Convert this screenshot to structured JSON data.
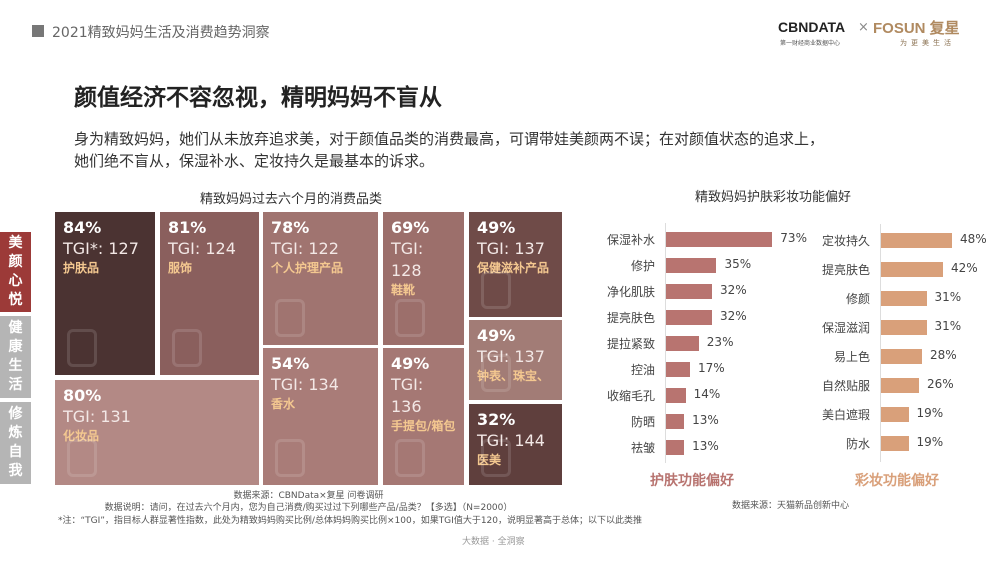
{
  "header": {
    "title": "2021精致妈妈生活及消费趋势洞察"
  },
  "logo": {
    "cbn": "CBNDATA",
    "cbn_sub": "第一财经商业数据中心",
    "x": "×",
    "fosun": "FOSUN 复星",
    "fosun_sub": "为更美生活"
  },
  "headline": "颜值经济不容忽视，精明妈妈不盲从",
  "subtitle": [
    "身为精致妈妈，她们从未放弃追求美，对于颜值品类的消费最高，可谓带娃美颜两不误；在对颜值状态的追求上，",
    "她们绝不盲从，保湿补水、定妆持久是最基本的诉求。"
  ],
  "side_tabs": [
    {
      "label": "美颜心悦",
      "active": true
    },
    {
      "label": "健康生活",
      "active": false
    },
    {
      "label": "修炼自我",
      "active": false
    }
  ],
  "colors": {
    "active_tab": "#9c3a38",
    "inactive_tab": "#b5b5b5",
    "skincare_bar": "#b87470",
    "makeup_bar": "#d9a07a",
    "tile_label": "#f4c890"
  },
  "chart_data": [
    {
      "type": "treemap",
      "title": "精致妈妈过去六个月的消费品类",
      "items": [
        {
          "category": "护肤品",
          "pct": "84%",
          "tgi": "TGI*: 127",
          "icon": "lotion-bottle-icon",
          "color": "#4b3332"
        },
        {
          "category": "服饰",
          "pct": "81%",
          "tgi": "TGI: 124",
          "icon": "dress-icon",
          "color": "#8a5f5d"
        },
        {
          "category": "个人护理产品",
          "pct": "78%",
          "tgi": "TGI: 122",
          "icon": "toiletries-icon",
          "color": "#a07470"
        },
        {
          "category": "鞋靴",
          "pct": "69%",
          "tgi": "TGI: 128",
          "icon": "boot-icon",
          "color": "#9c6f6b"
        },
        {
          "category": "保健滋补产品",
          "pct": "49%",
          "tgi": "TGI: 137",
          "icon": "pill-icon",
          "color": "#6f4b48"
        },
        {
          "category": "化妆品",
          "pct": "80%",
          "tgi": "TGI: 131",
          "icon": "compact-mirror-icon",
          "color": "#b38985"
        },
        {
          "category": "香水",
          "pct": "54%",
          "tgi": "TGI: 134",
          "icon": "perfume-icon",
          "color": "#a97c78"
        },
        {
          "category": "手提包/箱包",
          "pct": "49%",
          "tgi": "TGI: 136",
          "icon": "handbag-icon",
          "color": "#a57874"
        },
        {
          "category": "钟表、珠宝、",
          "pct": "49%",
          "tgi": "TGI: 137",
          "icon": "jewelry-icon",
          "color": "#a27c76"
        },
        {
          "category": "医美",
          "pct": "32%",
          "tgi": "TGI: 144",
          "icon": "syringe-icon",
          "color": "#5f3f3d"
        }
      ],
      "source": "数据来源：CBNData×复星 问卷调研",
      "note": "数据说明：请问，在过去六个月内，您为自己消费/购买过过下列哪些产品/品类？【多选】（N=2000）",
      "footnote": "*注：“TGI”，指目标人群显著性指数，此处为精致妈妈购买比例/总体妈妈购买比例×100，如果TGI值大于120，说明显著高于总体；以下以此类推"
    },
    {
      "type": "bar",
      "orientation": "horizontal",
      "title": "精致妈妈护肤彩妆功能偏好",
      "xlabel": "护肤功能偏好",
      "categories": [
        "保湿补水",
        "修护",
        "净化肌肤",
        "提亮肤色",
        "提拉紧致",
        "控油",
        "收缩毛孔",
        "防晒",
        "祛皱"
      ],
      "values": [
        73,
        35,
        32,
        32,
        23,
        17,
        14,
        13,
        13
      ],
      "unit": "%"
    },
    {
      "type": "bar",
      "orientation": "horizontal",
      "xlabel": "彩妆功能偏好",
      "categories": [
        "定妆持久",
        "提亮肤色",
        "修颜",
        "保湿滋润",
        "易上色",
        "自然贴服",
        "美白遮瑕",
        "防水"
      ],
      "values": [
        48,
        42,
        31,
        31,
        28,
        26,
        19,
        19
      ],
      "unit": "%",
      "source": "数据来源：天猫新品创新中心"
    }
  ],
  "footer": "大数据 · 全洞察"
}
